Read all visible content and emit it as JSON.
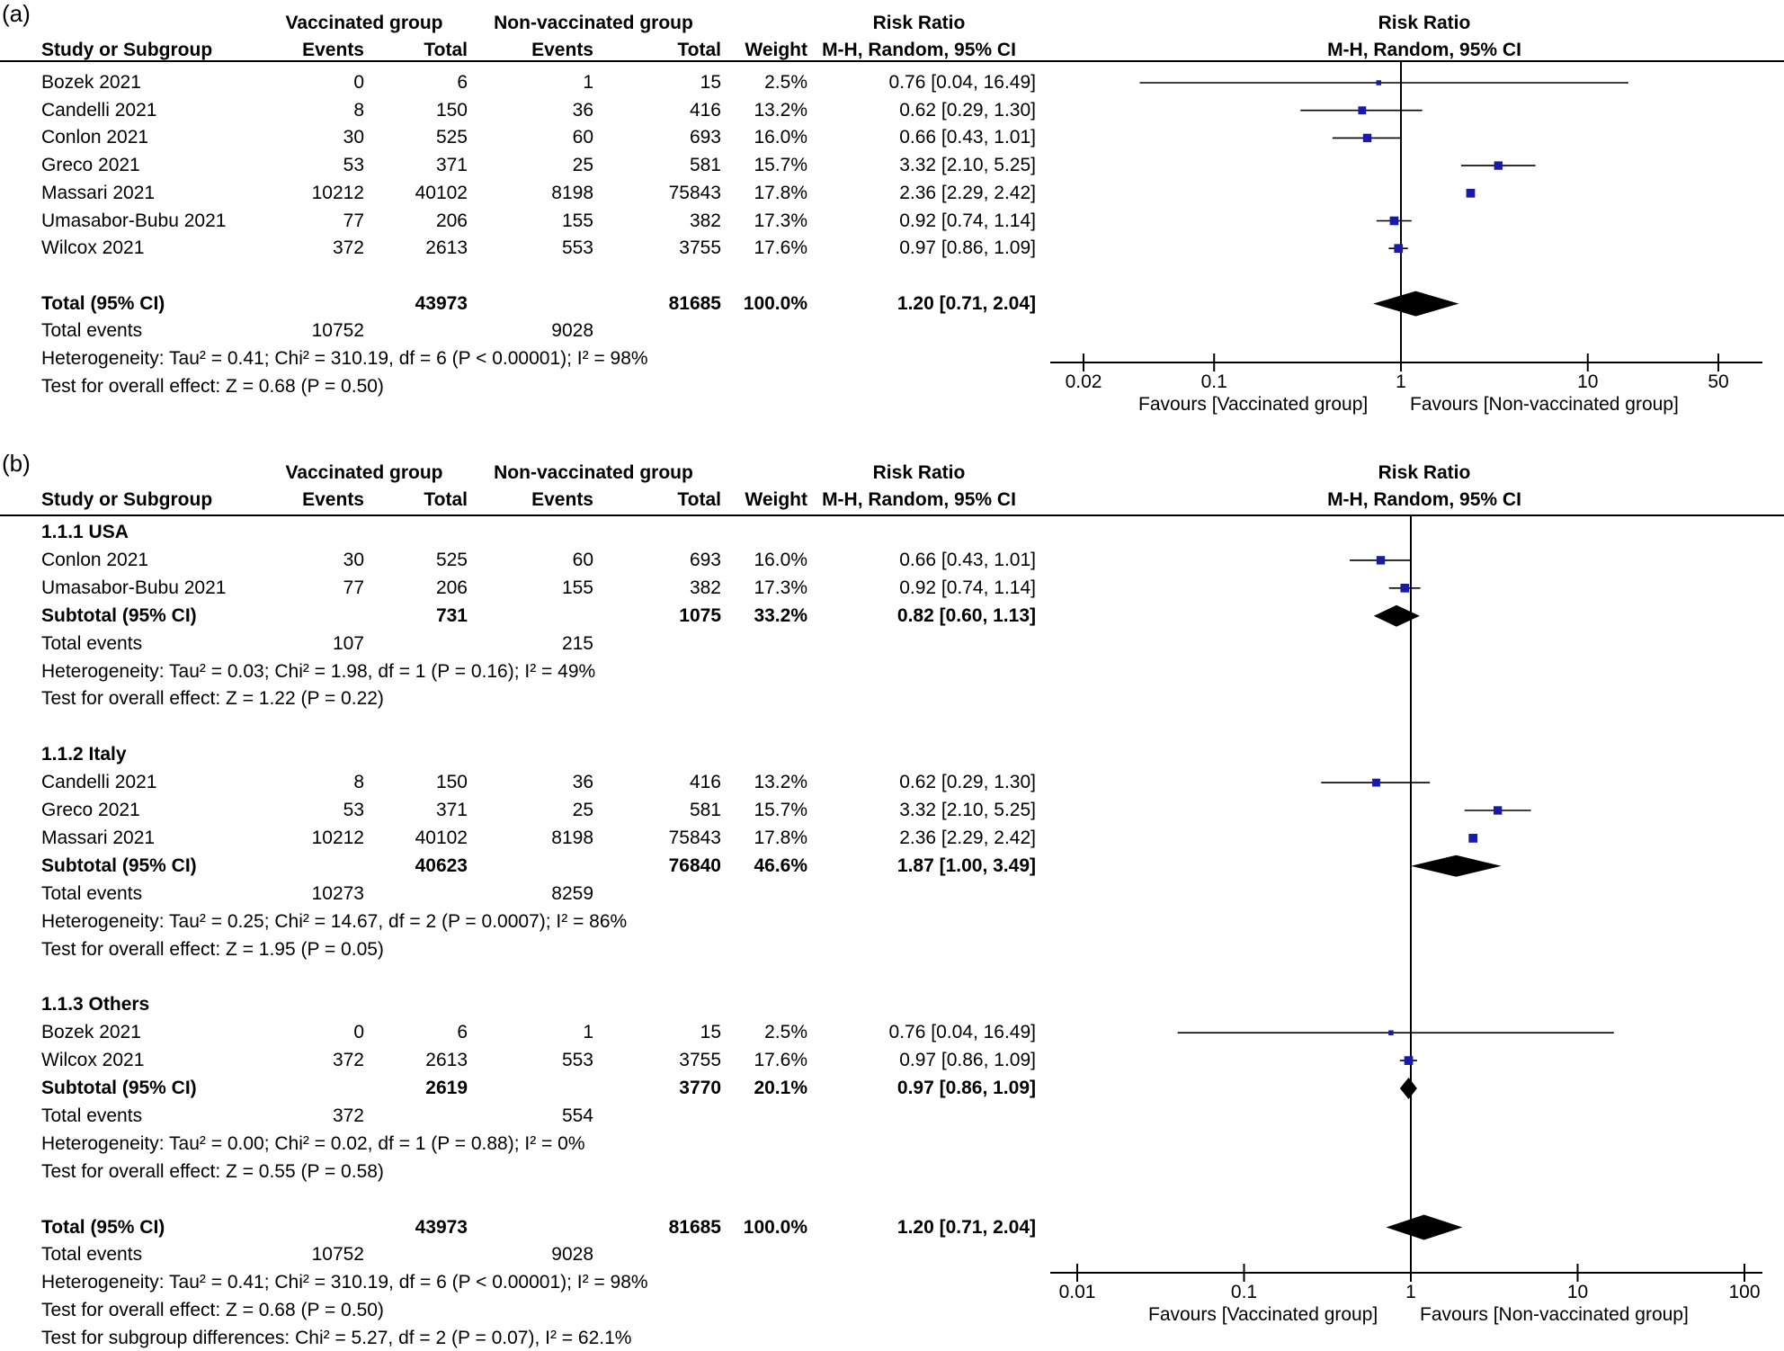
{
  "chart_data": [
    {
      "type": "forest",
      "panel_label": "(a)",
      "headers": {
        "group1": "Vaccinated group",
        "group2": "Non-vaccinated group",
        "study": "Study or Subgroup",
        "events": "Events",
        "total": "Total",
        "weight": "Weight",
        "rr_title": "Risk Ratio",
        "rr_method": "M-H, Random, 95% CI"
      },
      "x_axis": {
        "scale": "log",
        "ticks": [
          0.02,
          0.1,
          1,
          10,
          50
        ],
        "tick_labels": [
          "0.02",
          "0.1",
          "1",
          "10",
          "50"
        ],
        "left_label": "Favours [Vaccinated group]",
        "right_label": "Favours [Non-vaccinated group]"
      },
      "rows": [
        {
          "kind": "study",
          "name": "Bozek 2021",
          "e1": "0",
          "t1": "6",
          "e2": "1",
          "t2": "15",
          "weight": "2.5%",
          "ci_text": "0.76 [0.04, 16.49]",
          "rr": 0.76,
          "lo": 0.04,
          "hi": 16.49,
          "w": 2.5
        },
        {
          "kind": "study",
          "name": "Candelli 2021",
          "e1": "8",
          "t1": "150",
          "e2": "36",
          "t2": "416",
          "weight": "13.2%",
          "ci_text": "0.62 [0.29, 1.30]",
          "rr": 0.62,
          "lo": 0.29,
          "hi": 1.3,
          "w": 13.2
        },
        {
          "kind": "study",
          "name": "Conlon 2021",
          "e1": "30",
          "t1": "525",
          "e2": "60",
          "t2": "693",
          "weight": "16.0%",
          "ci_text": "0.66 [0.43, 1.01]",
          "rr": 0.66,
          "lo": 0.43,
          "hi": 1.01,
          "w": 16.0
        },
        {
          "kind": "study",
          "name": "Greco 2021",
          "e1": "53",
          "t1": "371",
          "e2": "25",
          "t2": "581",
          "weight": "15.7%",
          "ci_text": "3.32 [2.10, 5.25]",
          "rr": 3.32,
          "lo": 2.1,
          "hi": 5.25,
          "w": 15.7
        },
        {
          "kind": "study",
          "name": "Massari 2021",
          "e1": "10212",
          "t1": "40102",
          "e2": "8198",
          "t2": "75843",
          "weight": "17.8%",
          "ci_text": "2.36 [2.29, 2.42]",
          "rr": 2.36,
          "lo": 2.29,
          "hi": 2.42,
          "w": 17.8
        },
        {
          "kind": "study",
          "name": "Umasabor-Bubu 2021",
          "e1": "77",
          "t1": "206",
          "e2": "155",
          "t2": "382",
          "weight": "17.3%",
          "ci_text": "0.92 [0.74, 1.14]",
          "rr": 0.92,
          "lo": 0.74,
          "hi": 1.14,
          "w": 17.3
        },
        {
          "kind": "study",
          "name": "Wilcox 2021",
          "e1": "372",
          "t1": "2613",
          "e2": "553",
          "t2": "3755",
          "weight": "17.6%",
          "ci_text": "0.97 [0.86, 1.09]",
          "rr": 0.97,
          "lo": 0.86,
          "hi": 1.09,
          "w": 17.6
        },
        {
          "kind": "blank"
        },
        {
          "kind": "total",
          "name": "Total (95% CI)",
          "t1": "43973",
          "t2": "81685",
          "weight": "100.0%",
          "ci_text": "1.20 [0.71, 2.04]",
          "rr": 1.2,
          "lo": 0.71,
          "hi": 2.04
        },
        {
          "kind": "events",
          "name": "Total events",
          "e1": "10752",
          "e2": "9028"
        },
        {
          "kind": "text",
          "text": "Heterogeneity: Tau² = 0.41; Chi² = 310.19, df = 6 (P < 0.00001); I² = 98%"
        },
        {
          "kind": "text",
          "text": "Test for overall effect: Z = 0.68 (P = 0.50)"
        }
      ]
    },
    {
      "type": "forest",
      "panel_label": "(b)",
      "headers": {
        "group1": "Vaccinated group",
        "group2": "Non-vaccinated group",
        "study": "Study or Subgroup",
        "events": "Events",
        "total": "Total",
        "weight": "Weight",
        "rr_title": "Risk Ratio",
        "rr_method": "M-H, Random, 95% CI"
      },
      "x_axis": {
        "scale": "log",
        "ticks": [
          0.01,
          0.1,
          1,
          10,
          100
        ],
        "tick_labels": [
          "0.01",
          "0.1",
          "1",
          "10",
          "100"
        ],
        "left_label": "Favours [Vaccinated group]",
        "right_label": "Favours [Non-vaccinated group]"
      },
      "rows": [
        {
          "kind": "group",
          "name": "1.1.1 USA"
        },
        {
          "kind": "study",
          "name": "Conlon 2021",
          "e1": "30",
          "t1": "525",
          "e2": "60",
          "t2": "693",
          "weight": "16.0%",
          "ci_text": "0.66 [0.43, 1.01]",
          "rr": 0.66,
          "lo": 0.43,
          "hi": 1.01,
          "w": 16.0
        },
        {
          "kind": "study",
          "name": "Umasabor-Bubu 2021",
          "e1": "77",
          "t1": "206",
          "e2": "155",
          "t2": "382",
          "weight": "17.3%",
          "ci_text": "0.92 [0.74, 1.14]",
          "rr": 0.92,
          "lo": 0.74,
          "hi": 1.14,
          "w": 17.3
        },
        {
          "kind": "subtotal",
          "name": "Subtotal (95% CI)",
          "t1": "731",
          "t2": "1075",
          "weight": "33.2%",
          "ci_text": "0.82 [0.60, 1.13]",
          "rr": 0.82,
          "lo": 0.6,
          "hi": 1.13
        },
        {
          "kind": "events",
          "name": "Total events",
          "e1": "107",
          "e2": "215"
        },
        {
          "kind": "text",
          "text": "Heterogeneity: Tau² = 0.03; Chi² = 1.98, df = 1 (P = 0.16); I² = 49%"
        },
        {
          "kind": "text",
          "text": "Test for overall effect: Z = 1.22 (P = 0.22)"
        },
        {
          "kind": "blank"
        },
        {
          "kind": "group",
          "name": "1.1.2 Italy"
        },
        {
          "kind": "study",
          "name": "Candelli 2021",
          "e1": "8",
          "t1": "150",
          "e2": "36",
          "t2": "416",
          "weight": "13.2%",
          "ci_text": "0.62 [0.29, 1.30]",
          "rr": 0.62,
          "lo": 0.29,
          "hi": 1.3,
          "w": 13.2
        },
        {
          "kind": "study",
          "name": "Greco 2021",
          "e1": "53",
          "t1": "371",
          "e2": "25",
          "t2": "581",
          "weight": "15.7%",
          "ci_text": "3.32 [2.10, 5.25]",
          "rr": 3.32,
          "lo": 2.1,
          "hi": 5.25,
          "w": 15.7
        },
        {
          "kind": "study",
          "name": "Massari 2021",
          "e1": "10212",
          "t1": "40102",
          "e2": "8198",
          "t2": "75843",
          "weight": "17.8%",
          "ci_text": "2.36 [2.29, 2.42]",
          "rr": 2.36,
          "lo": 2.29,
          "hi": 2.42,
          "w": 17.8
        },
        {
          "kind": "subtotal",
          "name": "Subtotal (95% CI)",
          "t1": "40623",
          "t2": "76840",
          "weight": "46.6%",
          "ci_text": "1.87 [1.00, 3.49]",
          "rr": 1.87,
          "lo": 1.0,
          "hi": 3.49
        },
        {
          "kind": "events",
          "name": "Total events",
          "e1": "10273",
          "e2": "8259"
        },
        {
          "kind": "text",
          "text": "Heterogeneity: Tau² = 0.25; Chi² = 14.67, df = 2 (P = 0.0007); I² = 86%"
        },
        {
          "kind": "text",
          "text": "Test for overall effect: Z = 1.95 (P = 0.05)"
        },
        {
          "kind": "blank"
        },
        {
          "kind": "group",
          "name": "1.1.3 Others"
        },
        {
          "kind": "study",
          "name": "Bozek 2021",
          "e1": "0",
          "t1": "6",
          "e2": "1",
          "t2": "15",
          "weight": "2.5%",
          "ci_text": "0.76 [0.04, 16.49]",
          "rr": 0.76,
          "lo": 0.04,
          "hi": 16.49,
          "w": 2.5
        },
        {
          "kind": "study",
          "name": "Wilcox 2021",
          "e1": "372",
          "t1": "2613",
          "e2": "553",
          "t2": "3755",
          "weight": "17.6%",
          "ci_text": "0.97 [0.86, 1.09]",
          "rr": 0.97,
          "lo": 0.86,
          "hi": 1.09,
          "w": 17.6
        },
        {
          "kind": "subtotal",
          "name": "Subtotal (95% CI)",
          "t1": "2619",
          "t2": "3770",
          "weight": "20.1%",
          "ci_text": "0.97 [0.86, 1.09]",
          "rr": 0.97,
          "lo": 0.86,
          "hi": 1.09
        },
        {
          "kind": "events",
          "name": "Total events",
          "e1": "372",
          "e2": "554"
        },
        {
          "kind": "text",
          "text": "Heterogeneity: Tau² = 0.00; Chi² = 0.02, df = 1 (P = 0.88); I² = 0%"
        },
        {
          "kind": "text",
          "text": "Test for overall effect: Z = 0.55 (P = 0.58)"
        },
        {
          "kind": "blank"
        },
        {
          "kind": "total",
          "name": "Total (95% CI)",
          "t1": "43973",
          "t2": "81685",
          "weight": "100.0%",
          "ci_text": "1.20 [0.71, 2.04]",
          "rr": 1.2,
          "lo": 0.71,
          "hi": 2.04
        },
        {
          "kind": "events",
          "name": "Total events",
          "e1": "10752",
          "e2": "9028"
        },
        {
          "kind": "text",
          "text": "Heterogeneity: Tau² = 0.41; Chi² = 310.19, df = 6 (P < 0.00001); I² = 98%"
        },
        {
          "kind": "text",
          "text": "Test for overall effect: Z = 0.68 (P = 0.50)"
        },
        {
          "kind": "text",
          "text": "Test for subgroup differences: Chi² = 5.27, df = 2 (P = 0.07), I² = 62.1%"
        }
      ]
    }
  ],
  "colors": {
    "study_marker": "#1a1aa8",
    "diamond": "#000000",
    "lines": "#000000"
  }
}
